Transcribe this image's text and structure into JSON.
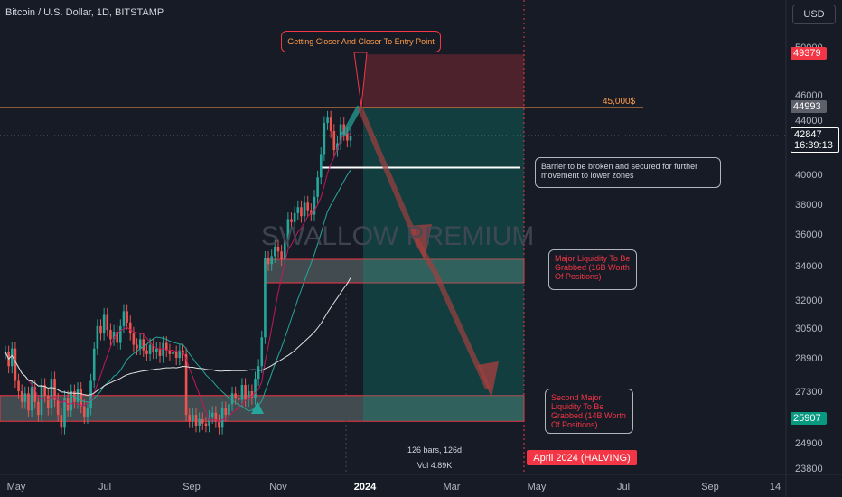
{
  "header": {
    "ticker": "Bitcoin / U.S. Dollar, 1D, BITSTAMP",
    "currency": "USD"
  },
  "watermark": "SWALLOW PREMIUM",
  "annotations": {
    "entry_note": "Getting Closer And Closer To Entry Point",
    "barrier_note": "Barrier to be broken and secured for further movement to lower zones",
    "major_liquidity": "Major Liquidity To Be Grabbed (16B Worth Of Positions)",
    "second_liquidity": "Second Major Liquidity To Be Grabbed (14B Worth Of Positions)",
    "level_label": "45,000$",
    "bars_info": "126 bars, 126d",
    "vol_info": "Vol 4.89K",
    "halving": "April 2024 (HALVING)"
  },
  "price_tags": {
    "stop": "49379",
    "level": "44993",
    "last": "42847",
    "countdown": "16:39:13",
    "target": "25907"
  },
  "colors": {
    "background": "#171b26",
    "up": "#26a69a",
    "down": "#ef5350",
    "accent_orange": "#ff9c4a",
    "accent_red": "#f23645",
    "target_green": "#089981"
  },
  "chart_data": {
    "type": "candlestick",
    "y_axis_ticks": [
      "50000",
      "46000",
      "44000",
      "40000",
      "38000",
      "36000",
      "34000",
      "32000",
      "30500",
      "28900",
      "27300",
      "24900",
      "23800"
    ],
    "x_axis_ticks": [
      "May",
      "Jul",
      "Sep",
      "Nov",
      "2024",
      "Mar",
      "May",
      "Jul",
      "Sep",
      "14"
    ],
    "levels": {
      "resistance_45000": 45000,
      "last_price": 42847,
      "barrier": 40500,
      "stop_loss": 49379,
      "target": 25907
    },
    "zones": [
      {
        "name": "major-liquidity",
        "low": 33000,
        "high": 34400
      },
      {
        "name": "second-liquidity",
        "low": 25900,
        "high": 27100
      }
    ],
    "series": [
      {
        "values": [
          29200,
          28500,
          29400,
          27800,
          27300,
          26800,
          27200,
          26400,
          27500,
          26800,
          26200,
          27600,
          27100,
          26500,
          27900,
          26900,
          26200,
          25600,
          27000,
          26400,
          27300,
          26800,
          27400,
          26600,
          26100,
          26500,
          27800,
          29400,
          30600,
          30200,
          31200,
          30400,
          29900,
          30300,
          29700,
          30600,
          31400,
          30800,
          30200,
          29600,
          29400,
          29900,
          29300,
          29100,
          29600,
          29200,
          29400,
          29000,
          29700,
          29300,
          29100,
          29200,
          28900,
          29300,
          29100,
          26200,
          25900,
          26200,
          25700,
          26000,
          25800,
          25700,
          26100,
          26300,
          25900,
          25600,
          26500,
          26200,
          26700,
          27200,
          27000,
          26900,
          27600,
          26900,
          27300,
          27000,
          27900,
          28500,
          30000,
          34500,
          34100,
          34600,
          35200,
          34900,
          34400,
          35600,
          37000,
          36800,
          37400,
          37800,
          37200,
          38100,
          37600,
          37300,
          38500,
          39800,
          41500,
          43800,
          44200,
          43200,
          41800,
          42300,
          43700,
          43000,
          42500,
          42847
        ]
      }
    ]
  }
}
